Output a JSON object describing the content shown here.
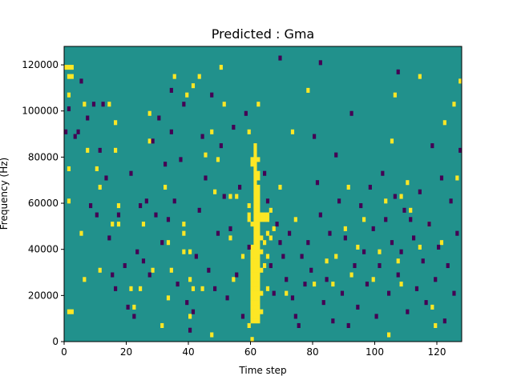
{
  "chart_data": {
    "type": "heatmap",
    "title": "Predicted : Gma",
    "xlabel": "Time step",
    "ylabel": "Frequency (Hz)",
    "xlim": [
      0,
      128
    ],
    "ylim": [
      0,
      128000
    ],
    "xticks": [
      0,
      20,
      40,
      60,
      80,
      100,
      120
    ],
    "yticks": [
      0,
      20000,
      40000,
      60000,
      80000,
      100000,
      120000
    ],
    "xtick_labels": [
      "0",
      "20",
      "40",
      "60",
      "80",
      "100",
      "120"
    ],
    "ytick_labels": [
      "0",
      "20000",
      "40000",
      "60000",
      "80000",
      "100000",
      "120000"
    ],
    "grid": false,
    "colormap": "viridis",
    "colors": {
      "background": "#21918c",
      "high": "#fde725",
      "low": "#440154"
    },
    "n_time_steps": 128,
    "n_freq_bins": 64,
    "bin_width_hz": 2000,
    "cells_high": [
      [
        0,
        119
      ],
      [
        1,
        119
      ],
      [
        2,
        119
      ],
      [
        1,
        115
      ],
      [
        2,
        115
      ],
      [
        1,
        107
      ],
      [
        1,
        75
      ],
      [
        1,
        61
      ],
      [
        1,
        13
      ],
      [
        2,
        13
      ],
      [
        5,
        47
      ],
      [
        6,
        103
      ],
      [
        6,
        27
      ],
      [
        7,
        83
      ],
      [
        10,
        75
      ],
      [
        11,
        67
      ],
      [
        11,
        31
      ],
      [
        14,
        103
      ],
      [
        15,
        51
      ],
      [
        16,
        95
      ],
      [
        16,
        83
      ],
      [
        17,
        59
      ],
      [
        17,
        51
      ],
      [
        21,
        23
      ],
      [
        22,
        15
      ],
      [
        24,
        23
      ],
      [
        25,
        51
      ],
      [
        27,
        99
      ],
      [
        27,
        87
      ],
      [
        28,
        31
      ],
      [
        31,
        7
      ],
      [
        32,
        67
      ],
      [
        33,
        43
      ],
      [
        33,
        19
      ],
      [
        34,
        31
      ],
      [
        35,
        115
      ],
      [
        38,
        51
      ],
      [
        38,
        47
      ],
      [
        38,
        39
      ],
      [
        39,
        107
      ],
      [
        40,
        39
      ],
      [
        40,
        27
      ],
      [
        40,
        11
      ],
      [
        41,
        111
      ],
      [
        41,
        23
      ],
      [
        43,
        115
      ],
      [
        44,
        23
      ],
      [
        45,
        81
      ],
      [
        47,
        91
      ],
      [
        47,
        3
      ],
      [
        48,
        65
      ],
      [
        49,
        79
      ],
      [
        50,
        119
      ],
      [
        51,
        103
      ],
      [
        53,
        63
      ],
      [
        53,
        45
      ],
      [
        54,
        27
      ],
      [
        55,
        63
      ],
      [
        57,
        37
      ],
      [
        59,
        91
      ],
      [
        59,
        59
      ],
      [
        59,
        55
      ],
      [
        59,
        53
      ],
      [
        59,
        7
      ],
      [
        60,
        51
      ],
      [
        60,
        41
      ],
      [
        60,
        1
      ],
      [
        60,
        9
      ],
      [
        60,
        11
      ],
      [
        60,
        13
      ],
      [
        60,
        15
      ],
      [
        60,
        17
      ],
      [
        60,
        19
      ],
      [
        60,
        21
      ],
      [
        60,
        23
      ],
      [
        60,
        25
      ],
      [
        60,
        27
      ],
      [
        60,
        29
      ],
      [
        60,
        31
      ],
      [
        60,
        33
      ],
      [
        60,
        35
      ],
      [
        60,
        37
      ],
      [
        60,
        39
      ],
      [
        60,
        77
      ],
      [
        60,
        79
      ],
      [
        61,
        9
      ],
      [
        61,
        11
      ],
      [
        61,
        13
      ],
      [
        61,
        15
      ],
      [
        61,
        17
      ],
      [
        61,
        19
      ],
      [
        61,
        21
      ],
      [
        61,
        23
      ],
      [
        61,
        25
      ],
      [
        61,
        27
      ],
      [
        61,
        29
      ],
      [
        61,
        31
      ],
      [
        61,
        33
      ],
      [
        61,
        35
      ],
      [
        61,
        37
      ],
      [
        61,
        39
      ],
      [
        61,
        41
      ],
      [
        61,
        43
      ],
      [
        61,
        45
      ],
      [
        61,
        47
      ],
      [
        61,
        49
      ],
      [
        61,
        51
      ],
      [
        61,
        53
      ],
      [
        61,
        55
      ],
      [
        61,
        57
      ],
      [
        61,
        59
      ],
      [
        61,
        61
      ],
      [
        61,
        63
      ],
      [
        61,
        65
      ],
      [
        61,
        67
      ],
      [
        61,
        69
      ],
      [
        61,
        71
      ],
      [
        61,
        73
      ],
      [
        61,
        75
      ],
      [
        61,
        77
      ],
      [
        61,
        79
      ],
      [
        61,
        81
      ],
      [
        61,
        83
      ],
      [
        61,
        85
      ],
      [
        62,
        9
      ],
      [
        62,
        11
      ],
      [
        62,
        13
      ],
      [
        62,
        15
      ],
      [
        62,
        17
      ],
      [
        62,
        19
      ],
      [
        62,
        21
      ],
      [
        62,
        23
      ],
      [
        62,
        25
      ],
      [
        62,
        27
      ],
      [
        62,
        29
      ],
      [
        62,
        31
      ],
      [
        62,
        33
      ],
      [
        62,
        35
      ],
      [
        62,
        37
      ],
      [
        62,
        39
      ],
      [
        62,
        41
      ],
      [
        62,
        43
      ],
      [
        62,
        45
      ],
      [
        62,
        47
      ],
      [
        62,
        49
      ],
      [
        62,
        51
      ],
      [
        62,
        53
      ],
      [
        62,
        55
      ],
      [
        62,
        57
      ],
      [
        62,
        59
      ],
      [
        62,
        61
      ],
      [
        62,
        63
      ],
      [
        62,
        65
      ],
      [
        62,
        67
      ],
      [
        62,
        71
      ],
      [
        62,
        73
      ],
      [
        62,
        79
      ],
      [
        62,
        103
      ],
      [
        63,
        55
      ],
      [
        63,
        53
      ],
      [
        63,
        45
      ],
      [
        63,
        39
      ],
      [
        63,
        31
      ],
      [
        63,
        21
      ],
      [
        63,
        13
      ],
      [
        64,
        55
      ],
      [
        64,
        53
      ],
      [
        64,
        43
      ],
      [
        64,
        33
      ],
      [
        65,
        55
      ],
      [
        65,
        53
      ],
      [
        65,
        47
      ],
      [
        65,
        37
      ],
      [
        65,
        23
      ],
      [
        66,
        57
      ],
      [
        66,
        45
      ],
      [
        67,
        49
      ],
      [
        69,
        67
      ],
      [
        71,
        21
      ],
      [
        73,
        91
      ],
      [
        74,
        53
      ],
      [
        78,
        109
      ],
      [
        80,
        25
      ],
      [
        84,
        35
      ],
      [
        86,
        25
      ],
      [
        87,
        37
      ],
      [
        90,
        49
      ],
      [
        91,
        67
      ],
      [
        92,
        29
      ],
      [
        94,
        41
      ],
      [
        96,
        53
      ],
      [
        99,
        27
      ],
      [
        101,
        39
      ],
      [
        103,
        61
      ],
      [
        104,
        3
      ],
      [
        105,
        87
      ],
      [
        106,
        107
      ],
      [
        107,
        35
      ],
      [
        108,
        63
      ],
      [
        108,
        25
      ],
      [
        110,
        69
      ],
      [
        111,
        57
      ],
      [
        114,
        41
      ],
      [
        114,
        115
      ],
      [
        117,
        51
      ],
      [
        118,
        15
      ],
      [
        119,
        7
      ],
      [
        121,
        43
      ],
      [
        122,
        95
      ],
      [
        125,
        103
      ],
      [
        126,
        71
      ],
      [
        127,
        113
      ]
    ],
    "cells_low": [
      [
        0,
        91
      ],
      [
        1,
        101
      ],
      [
        3,
        89
      ],
      [
        4,
        91
      ],
      [
        5,
        113
      ],
      [
        7,
        97
      ],
      [
        8,
        59
      ],
      [
        9,
        103
      ],
      [
        10,
        55
      ],
      [
        11,
        83
      ],
      [
        12,
        103
      ],
      [
        13,
        71
      ],
      [
        14,
        45
      ],
      [
        15,
        29
      ],
      [
        16,
        23
      ],
      [
        17,
        55
      ],
      [
        19,
        33
      ],
      [
        20,
        15
      ],
      [
        21,
        73
      ],
      [
        22,
        11
      ],
      [
        23,
        39
      ],
      [
        24,
        59
      ],
      [
        25,
        35
      ],
      [
        26,
        61
      ],
      [
        27,
        29
      ],
      [
        28,
        87
      ],
      [
        29,
        55
      ],
      [
        30,
        97
      ],
      [
        31,
        43
      ],
      [
        32,
        77
      ],
      [
        33,
        53
      ],
      [
        34,
        91
      ],
      [
        35,
        61
      ],
      [
        36,
        25
      ],
      [
        37,
        79
      ],
      [
        38,
        103
      ],
      [
        39,
        17
      ],
      [
        40,
        5
      ],
      [
        41,
        13
      ],
      [
        42,
        37
      ],
      [
        43,
        57
      ],
      [
        44,
        89
      ],
      [
        45,
        71
      ],
      [
        46,
        31
      ],
      [
        47,
        107
      ],
      [
        48,
        23
      ],
      [
        49,
        47
      ],
      [
        50,
        85
      ],
      [
        51,
        63
      ],
      [
        52,
        19
      ],
      [
        53,
        49
      ],
      [
        54,
        93
      ],
      [
        55,
        29
      ],
      [
        56,
        67
      ],
      [
        57,
        11
      ],
      [
        58,
        99
      ],
      [
        59,
        41
      ],
      [
        64,
        73
      ],
      [
        65,
        61
      ],
      [
        66,
        33
      ],
      [
        67,
        21
      ],
      [
        68,
        51
      ],
      [
        69,
        43
      ],
      [
        70,
        37
      ],
      [
        71,
        27
      ],
      [
        72,
        47
      ],
      [
        73,
        19
      ],
      [
        74,
        11
      ],
      [
        75,
        7
      ],
      [
        76,
        37
      ],
      [
        77,
        25
      ],
      [
        78,
        43
      ],
      [
        79,
        31
      ],
      [
        80,
        89
      ],
      [
        81,
        69
      ],
      [
        82,
        55
      ],
      [
        83,
        17
      ],
      [
        84,
        27
      ],
      [
        85,
        47
      ],
      [
        86,
        9
      ],
      [
        87,
        81
      ],
      [
        88,
        61
      ],
      [
        89,
        21
      ],
      [
        90,
        45
      ],
      [
        91,
        7
      ],
      [
        92,
        99
      ],
      [
        93,
        33
      ],
      [
        94,
        15
      ],
      [
        95,
        59
      ],
      [
        96,
        39
      ],
      [
        97,
        25
      ],
      [
        98,
        67
      ],
      [
        99,
        49
      ],
      [
        100,
        11
      ],
      [
        101,
        33
      ],
      [
        102,
        73
      ],
      [
        103,
        53
      ],
      [
        104,
        21
      ],
      [
        105,
        43
      ],
      [
        106,
        63
      ],
      [
        107,
        29
      ],
      [
        108,
        39
      ],
      [
        109,
        57
      ],
      [
        110,
        13
      ],
      [
        111,
        53
      ],
      [
        112,
        45
      ],
      [
        113,
        23
      ],
      [
        114,
        65
      ],
      [
        115,
        35
      ],
      [
        116,
        17
      ],
      [
        117,
        51
      ],
      [
        118,
        85
      ],
      [
        119,
        27
      ],
      [
        120,
        41
      ],
      [
        121,
        71
      ],
      [
        122,
        9
      ],
      [
        123,
        33
      ],
      [
        124,
        61
      ],
      [
        125,
        21
      ],
      [
        126,
        47
      ],
      [
        127,
        83
      ],
      [
        34,
        109
      ],
      [
        69,
        123
      ],
      [
        82,
        121
      ],
      [
        107,
        117
      ]
    ]
  }
}
